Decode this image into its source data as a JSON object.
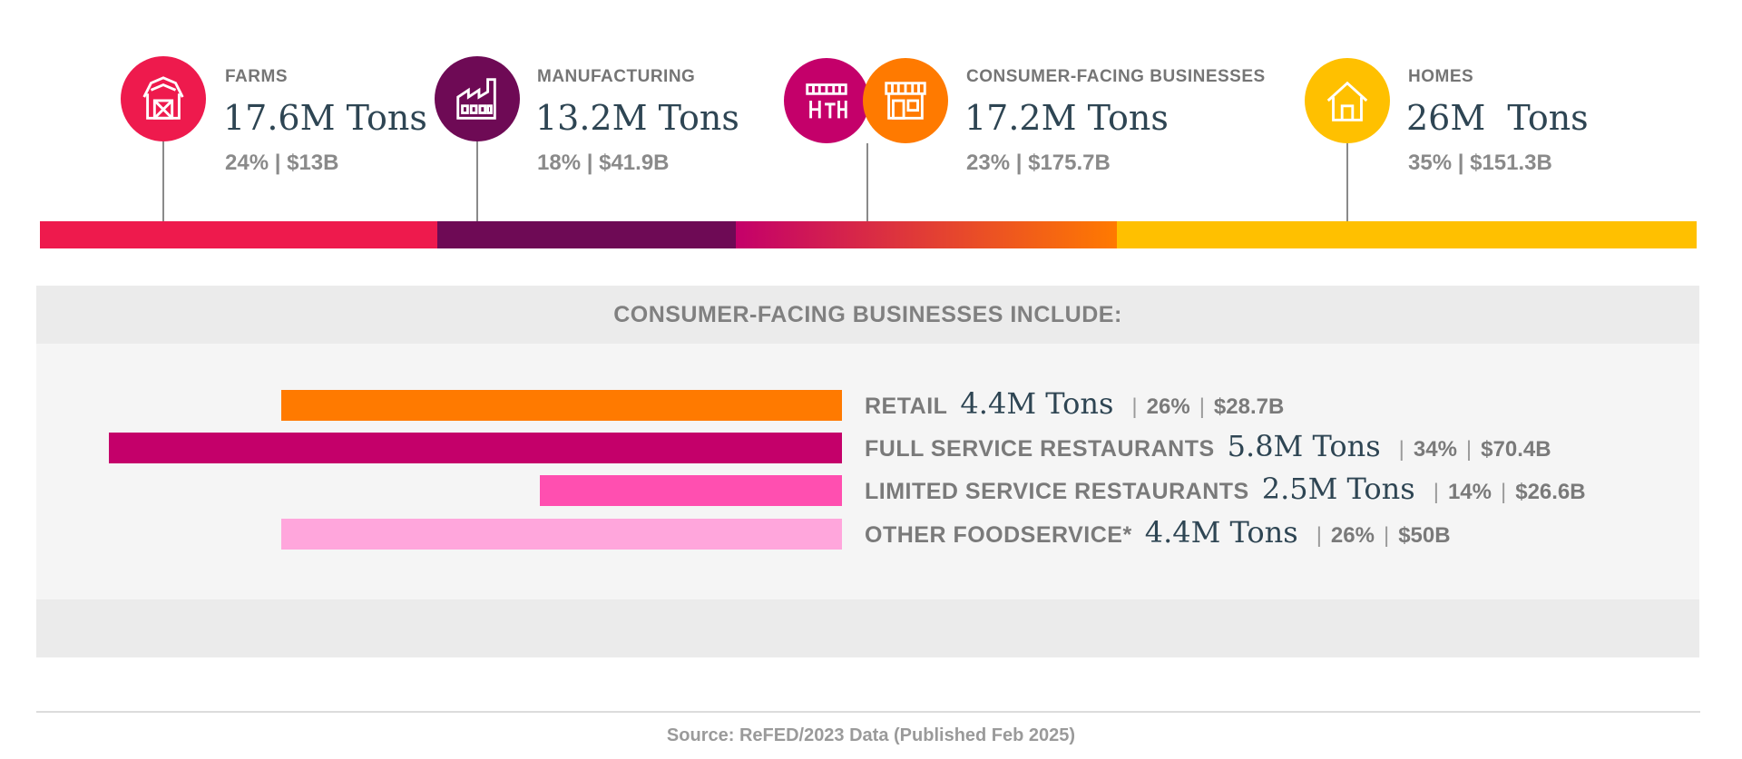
{
  "colors": {
    "farms": "#ee1a4d",
    "manufacturing": "#6e0a55",
    "cfb_start": "#c4006a",
    "cfb_end": "#ff7a00",
    "homes": "#ffc000",
    "retail": "#ff7a00",
    "full_service": "#c4006a",
    "limited_service": "#ff4fb0",
    "other_foodservice": "#ffa6dc"
  },
  "sectors": [
    {
      "label": "FARMS",
      "tons": "17.6M Tons",
      "pct": "24%",
      "value": "$13B",
      "icon": "barn-icon"
    },
    {
      "label": "MANUFACTURING",
      "tons": "13.2M Tons",
      "pct": "18%",
      "value": "$41.9B",
      "icon": "factory-icon"
    },
    {
      "label": "CONSUMER-FACING BUSINESSES",
      "tons": "17.2M Tons",
      "pct": "23%",
      "value": "$175.7B",
      "icon": "storefront-icon"
    },
    {
      "label": "HOMES",
      "tons": "26M  Tons",
      "pct": "35%",
      "value": "$151.3B",
      "icon": "house-icon"
    }
  ],
  "stat_separator": "|",
  "cfb_section_title": "CONSUMER-FACING BUSINESSES INCLUDE:",
  "chart_data": [
    {
      "type": "bar",
      "orientation": "stacked-horizontal",
      "categories": [
        "FARMS",
        "MANUFACTURING",
        "CONSUMER-FACING BUSINESSES",
        "HOMES"
      ],
      "values": [
        24,
        18,
        23,
        35
      ],
      "unit": "%"
    },
    {
      "type": "bar",
      "orientation": "horizontal",
      "title": "CONSUMER-FACING BUSINESSES INCLUDE:",
      "categories": [
        "RETAIL",
        "FULL SERVICE RESTAURANTS",
        "LIMITED SERVICE RESTAURANTS",
        "OTHER FOODSERVICE*"
      ],
      "values": [
        26,
        34,
        14,
        26
      ],
      "unit": "%",
      "rows": [
        {
          "label": "RETAIL",
          "tons": "4.4M Tons",
          "pct": "26%",
          "value": "$28.7B"
        },
        {
          "label": "FULL SERVICE RESTAURANTS",
          "tons": "5.8M Tons",
          "pct": "34%",
          "value": "$70.4B"
        },
        {
          "label": "LIMITED SERVICE RESTAURANTS",
          "tons": "2.5M Tons",
          "pct": "14%",
          "value": "$26.6B"
        },
        {
          "label": "OTHER FOODSERVICE*",
          "tons": "4.4M Tons",
          "pct": "26%",
          "value": "$50B"
        }
      ]
    }
  ],
  "source": "Source: ReFED/2023 Data (Published Feb 2025)"
}
